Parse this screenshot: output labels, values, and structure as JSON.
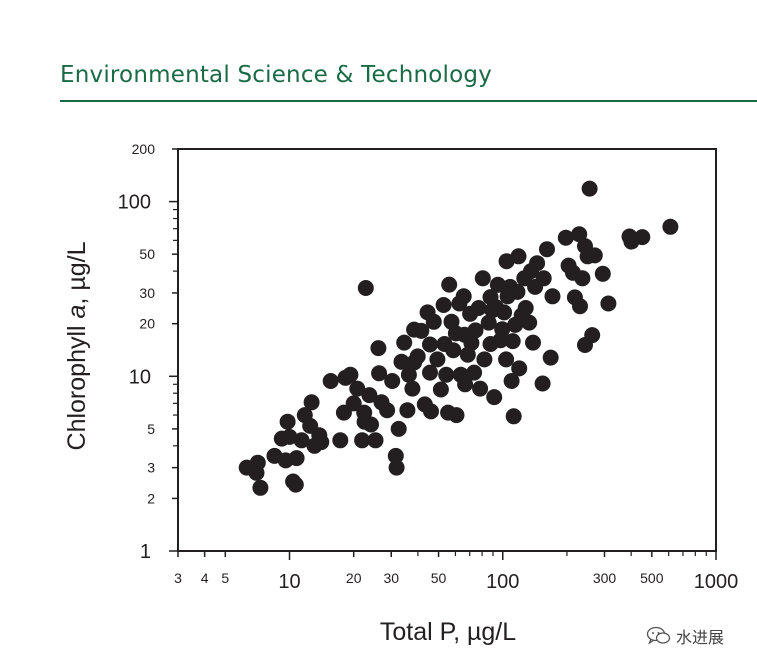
{
  "header": {
    "journal_title": "Environmental Science & Technology",
    "accent_color": "#1a6b45"
  },
  "watermark": {
    "text": "水进展",
    "icon": "wechat-logo-icon"
  },
  "chart_data": {
    "type": "scatter",
    "xlabel": "Total P, µg/L",
    "ylabel_prefix": "Chlorophyll ",
    "ylabel_italic": "a",
    "ylabel_suffix": ", µg/L",
    "xscale": "log",
    "yscale": "log",
    "xlim": [
      3,
      1000
    ],
    "ylim": [
      1,
      200
    ],
    "grid": false,
    "x_ticks": [
      {
        "value": 3,
        "label": "3",
        "major": false
      },
      {
        "value": 4,
        "label": "4",
        "major": false
      },
      {
        "value": 5,
        "label": "5",
        "major": false
      },
      {
        "value": 10,
        "label": "10",
        "major": true
      },
      {
        "value": 20,
        "label": "20",
        "major": false
      },
      {
        "value": 30,
        "label": "30",
        "major": false
      },
      {
        "value": 50,
        "label": "50",
        "major": false
      },
      {
        "value": 100,
        "label": "100",
        "major": true
      },
      {
        "value": 300,
        "label": "300",
        "major": false
      },
      {
        "value": 500,
        "label": "500",
        "major": false
      },
      {
        "value": 1000,
        "label": "1000",
        "major": true
      }
    ],
    "y_ticks": [
      {
        "value": 1,
        "label": "1",
        "major": true
      },
      {
        "value": 2,
        "label": "2",
        "major": false
      },
      {
        "value": 3,
        "label": "3",
        "major": false
      },
      {
        "value": 5,
        "label": "5",
        "major": false
      },
      {
        "value": 10,
        "label": "10",
        "major": true
      },
      {
        "value": 20,
        "label": "20",
        "major": false
      },
      {
        "value": 30,
        "label": "30",
        "major": false
      },
      {
        "value": 50,
        "label": "50",
        "major": false
      },
      {
        "value": 100,
        "label": "100",
        "major": true
      },
      {
        "value": 200,
        "label": "200",
        "major": false
      }
    ],
    "x_minor_ticks": [
      40,
      60,
      70,
      80,
      90,
      200,
      400,
      600,
      700,
      800,
      900
    ],
    "y_minor_ticks": [
      4,
      6,
      7,
      8,
      9,
      40,
      60,
      70,
      80,
      90
    ],
    "marker_color": "#231f20",
    "points": [
      [
        6.3,
        3.0
      ],
      [
        7.1,
        3.2
      ],
      [
        7.3,
        2.3
      ],
      [
        7.0,
        2.8
      ],
      [
        8.5,
        3.5
      ],
      [
        9.6,
        3.3
      ],
      [
        10.4,
        2.5
      ],
      [
        10.7,
        2.4
      ],
      [
        10.8,
        3.4
      ],
      [
        9.8,
        5.5
      ],
      [
        9.2,
        4.4
      ],
      [
        10.0,
        4.5
      ],
      [
        11.4,
        4.3
      ],
      [
        11.8,
        6.0
      ],
      [
        12.5,
        5.2
      ],
      [
        12.7,
        7.1
      ],
      [
        13.1,
        4.0
      ],
      [
        14.1,
        4.2
      ],
      [
        13.8,
        4.6
      ],
      [
        15.6,
        9.4
      ],
      [
        17.3,
        4.3
      ],
      [
        18.0,
        6.2
      ],
      [
        18.3,
        9.8
      ],
      [
        19.3,
        10.2
      ],
      [
        20.0,
        7.0
      ],
      [
        20.8,
        8.5
      ],
      [
        21.9,
        4.3
      ],
      [
        22.4,
        6.2
      ],
      [
        22.8,
        32.0
      ],
      [
        22.5,
        5.5
      ],
      [
        23.7,
        7.8
      ],
      [
        25.3,
        4.3
      ],
      [
        24.1,
        5.3
      ],
      [
        26.1,
        14.5
      ],
      [
        26.3,
        10.4
      ],
      [
        27.0,
        7.1
      ],
      [
        28.7,
        6.4
      ],
      [
        30.3,
        9.4
      ],
      [
        31.5,
        3.5
      ],
      [
        31.8,
        3.0
      ],
      [
        32.5,
        5.0
      ],
      [
        33.5,
        12.1
      ],
      [
        34.5,
        15.6
      ],
      [
        35.7,
        6.4
      ],
      [
        36.3,
        10.2
      ],
      [
        37.7,
        8.5
      ],
      [
        38.4,
        12.0
      ],
      [
        38.4,
        18.5
      ],
      [
        39.9,
        13.0
      ],
      [
        41.5,
        18.2
      ],
      [
        43.1,
        6.9
      ],
      [
        44.4,
        23.2
      ],
      [
        45.6,
        10.5
      ],
      [
        45.6,
        15.2
      ],
      [
        46.1,
        6.3
      ],
      [
        47.5,
        20.5
      ],
      [
        49.4,
        12.5
      ],
      [
        51.3,
        8.4
      ],
      [
        52.8,
        25.6
      ],
      [
        53.3,
        15.3
      ],
      [
        54.3,
        10.2
      ],
      [
        55.4,
        6.2
      ],
      [
        56.1,
        33.5
      ],
      [
        57.5,
        20.5
      ],
      [
        58.6,
        14.1
      ],
      [
        60.3,
        17.6
      ],
      [
        60.7,
        6.0
      ],
      [
        62.6,
        26.1
      ],
      [
        63.6,
        10.2
      ],
      [
        65.6,
        28.7
      ],
      [
        66.2,
        17.3
      ],
      [
        66.6,
        9.0
      ],
      [
        68.6,
        13.3
      ],
      [
        70.3,
        22.8
      ],
      [
        71.3,
        15.5
      ],
      [
        73.4,
        10.5
      ],
      [
        74.5,
        18.3
      ],
      [
        77.1,
        24.6
      ],
      [
        78.3,
        8.5
      ],
      [
        80.6,
        36.4
      ],
      [
        82.0,
        12.5
      ],
      [
        85.9,
        20.3
      ],
      [
        87.6,
        28.4
      ],
      [
        87.6,
        15.3
      ],
      [
        89.4,
        23.9
      ],
      [
        91.2,
        7.6
      ],
      [
        93.0,
        24.9
      ],
      [
        94.9,
        33.4
      ],
      [
        97.8,
        16.1
      ],
      [
        99.4,
        18.6
      ],
      [
        101.5,
        23.2
      ],
      [
        103.7,
        12.5
      ],
      [
        104.2,
        45.6
      ],
      [
        105.4,
        28.7
      ],
      [
        108.3,
        32.5
      ],
      [
        110.0,
        9.4
      ],
      [
        111.3,
        15.9
      ],
      [
        112.6,
        5.9
      ],
      [
        114.4,
        19.7
      ],
      [
        118.6,
        48.6
      ],
      [
        117.1,
        30.4
      ],
      [
        119.4,
        11.1
      ],
      [
        122.7,
        22.3
      ],
      [
        126.2,
        36.4
      ],
      [
        128.1,
        24.6
      ],
      [
        133.0,
        20.3
      ],
      [
        135.6,
        40.0
      ],
      [
        138.7,
        15.6
      ],
      [
        141.8,
        32.5
      ],
      [
        144.9,
        44.4
      ],
      [
        153.8,
        9.1
      ],
      [
        155.6,
        36.4
      ],
      [
        161.3,
        53.4
      ],
      [
        167.8,
        12.8
      ],
      [
        171.2,
        28.7
      ],
      [
        197.6,
        62.1
      ],
      [
        203.7,
        43.0
      ],
      [
        213.4,
        39.1
      ],
      [
        218.0,
        28.3
      ],
      [
        228.4,
        65.1
      ],
      [
        230.3,
        25.2
      ],
      [
        236.3,
        36.4
      ],
      [
        243.0,
        15.1
      ],
      [
        243.0,
        55.6
      ],
      [
        250.0,
        48.6
      ],
      [
        255.3,
        118.6
      ],
      [
        262.6,
        17.2
      ],
      [
        270.2,
        49.2
      ],
      [
        294.4,
        38.6
      ],
      [
        312.9,
        26.1
      ],
      [
        393.0,
        63.1
      ],
      [
        401.3,
        59.0
      ],
      [
        451.1,
        62.6
      ],
      [
        610.9,
        71.7
      ]
    ]
  }
}
